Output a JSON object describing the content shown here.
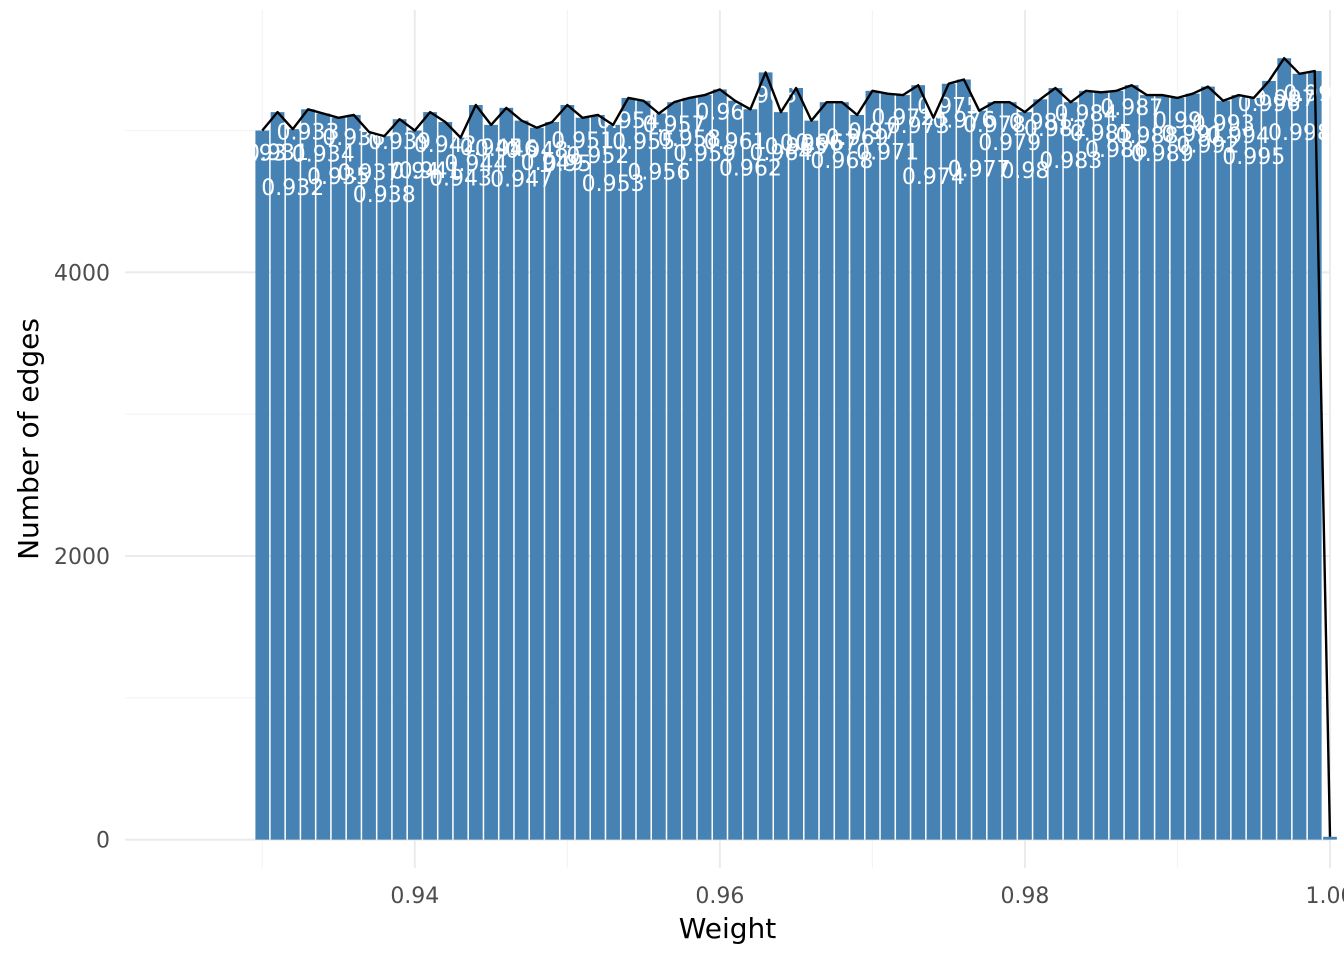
{
  "chart_data": {
    "type": "bar",
    "xlabel": "Weight",
    "ylabel": "Number of edges",
    "xlim": [
      0.921,
      1.0
    ],
    "ylim": [
      -200,
      5850
    ],
    "x_ticks": [
      "0.94",
      "0.96",
      "0.98",
      "1.00"
    ],
    "y_ticks": [
      "0",
      "2000",
      "4000"
    ],
    "bar_color": "#4682B4",
    "line_color": "#000000",
    "grid": true,
    "legend": "none",
    "x": [
      0.93,
      0.931,
      0.932,
      0.933,
      0.934,
      0.935,
      0.936,
      0.937,
      0.938,
      0.939,
      0.94,
      0.941,
      0.942,
      0.943,
      0.944,
      0.945,
      0.946,
      0.947,
      0.948,
      0.949,
      0.95,
      0.951,
      0.952,
      0.953,
      0.954,
      0.955,
      0.956,
      0.957,
      0.958,
      0.959,
      0.96,
      0.961,
      0.962,
      0.963,
      0.964,
      0.965,
      0.966,
      0.967,
      0.968,
      0.969,
      0.97,
      0.971,
      0.972,
      0.973,
      0.974,
      0.975,
      0.976,
      0.977,
      0.978,
      0.979,
      0.98,
      0.981,
      0.982,
      0.983,
      0.984,
      0.985,
      0.986,
      0.987,
      0.988,
      0.989,
      0.99,
      0.991,
      0.992,
      0.993,
      0.994,
      0.995,
      0.996,
      0.997,
      0.998,
      0.999,
      1.0
    ],
    "x_labels": [
      "0.93",
      "0.931",
      "0.932",
      "0.933",
      "0.934",
      "0.935",
      "0.936",
      "0.937",
      "0.938",
      "0.939",
      "0.94",
      "0.941",
      "0.942",
      "0.943",
      "0.944",
      "0.945",
      "0.946",
      "0.947",
      "0.948",
      "0.949",
      "0.95",
      "0.951",
      "0.952",
      "0.953",
      "0.954",
      "0.955",
      "0.956",
      "0.957",
      "0.958",
      "0.959",
      "0.96",
      "0.961",
      "0.962",
      "0.963",
      "0.964",
      "0.965",
      "0.966",
      "0.967",
      "0.968",
      "0.969",
      "0.97",
      "0.971",
      "0.972",
      "0.973",
      "0.974",
      "0.975",
      "0.976",
      "0.977",
      "0.978",
      "0.979",
      "0.98",
      "0.981",
      "0.982",
      "0.983",
      "0.984",
      "0.985",
      "0.986",
      "0.987",
      "0.988",
      "0.989",
      "0.99",
      "0.991",
      "0.992",
      "0.993",
      "0.994",
      "0.995",
      "0.996",
      "0.997",
      "0.998",
      "0.999",
      "1"
    ],
    "values": [
      5000,
      5130,
      5010,
      5150,
      5120,
      5090,
      5110,
      4990,
      4960,
      5080,
      5000,
      5130,
      5060,
      4950,
      5180,
      5040,
      5160,
      5070,
      5020,
      5060,
      5180,
      5090,
      5110,
      5040,
      5230,
      5210,
      5120,
      5200,
      5230,
      5250,
      5290,
      5210,
      5150,
      5410,
      5130,
      5300,
      5070,
      5200,
      5200,
      5110,
      5280,
      5260,
      5250,
      5320,
      5090,
      5330,
      5360,
      5140,
      5200,
      5200,
      5130,
      5220,
      5300,
      5200,
      5280,
      5270,
      5280,
      5320,
      5250,
      5250,
      5230,
      5260,
      5310,
      5210,
      5250,
      5230,
      5350,
      5510,
      5400,
      5420,
      20
    ]
  }
}
